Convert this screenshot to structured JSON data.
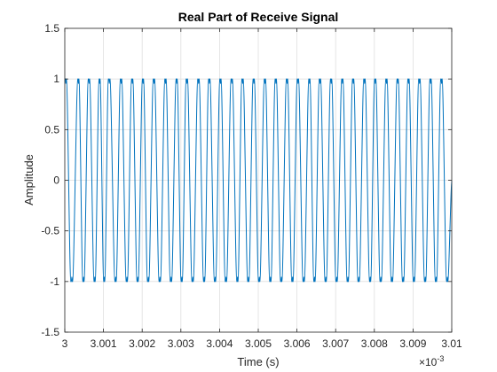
{
  "chart_data": {
    "type": "line",
    "title": "Real Part of Receive Signal",
    "xlabel": "Time (s)",
    "ylabel": "Amplitude",
    "x_multiplier": {
      "base": "×10",
      "exponent": "-3"
    },
    "xlim": [
      3.0,
      3.01
    ],
    "ylim": [
      -1.5,
      1.5
    ],
    "x_ticks": [
      3.0,
      3.001,
      3.002,
      3.003,
      3.004,
      3.005,
      3.006,
      3.007,
      3.008,
      3.009,
      3.01
    ],
    "x_tick_labels": [
      "3",
      "3.001",
      "3.002",
      "3.003",
      "3.004",
      "3.005",
      "3.006",
      "3.007",
      "3.008",
      "3.009",
      "3.01"
    ],
    "y_ticks": [
      -1.5,
      -1,
      -0.5,
      0,
      0.5,
      1,
      1.5
    ],
    "y_tick_labels": [
      "-1.5",
      "-1",
      "-0.5",
      "0",
      "0.5",
      "1",
      "1.5"
    ],
    "grid": true,
    "line_color": "#0072BD",
    "series": [
      {
        "x": [
          3.0,
          3.00015,
          3.00033,
          3.00046,
          3.0006,
          3.00075,
          3.00088,
          3.001,
          3.00112,
          3.00129,
          3.00143,
          3.00158,
          3.00172,
          3.00186,
          3.002,
          3.00213,
          3.00228,
          3.00243,
          3.00258,
          3.00272,
          3.00287,
          3.003,
          3.00313,
          3.00328,
          3.00343,
          3.00358,
          3.00371,
          3.00386,
          3.004,
          3.00414,
          3.00429,
          3.00444,
          3.00457,
          3.00472,
          3.00486,
          3.005,
          3.00515,
          3.00529,
          3.00543,
          3.00557,
          3.00572,
          3.00586,
          3.006,
          3.00615,
          3.0063,
          3.00643,
          3.00657,
          3.00672,
          3.00686,
          3.007,
          3.00715,
          3.00729,
          3.00743,
          3.00757,
          3.00772,
          3.00787,
          3.008,
          3.00814,
          3.00829,
          3.00843,
          3.00858,
          3.00872,
          3.00886,
          3.009,
          3.00914,
          3.00929,
          3.00943,
          3.00957,
          3.00971,
          3.00986,
          3.01
        ],
        "y": [
          1,
          -1,
          1,
          -1,
          1,
          -1,
          1,
          -1,
          1,
          -1,
          1,
          -1,
          1,
          -1,
          1,
          -1,
          1,
          -1,
          1,
          -1,
          1,
          -1,
          1,
          -1,
          1,
          -1,
          1,
          -1,
          1,
          -1,
          1,
          -1,
          1,
          -1,
          1,
          -1,
          1,
          -1,
          1,
          -1,
          1,
          -1,
          1,
          -1,
          1,
          -1,
          1,
          -1,
          1,
          -1,
          1,
          -1,
          1,
          -1,
          1,
          -1,
          1,
          -1,
          1,
          -1,
          1,
          -1,
          1,
          -1,
          1,
          -1,
          1,
          -1,
          1,
          -1,
          0
        ]
      }
    ]
  }
}
